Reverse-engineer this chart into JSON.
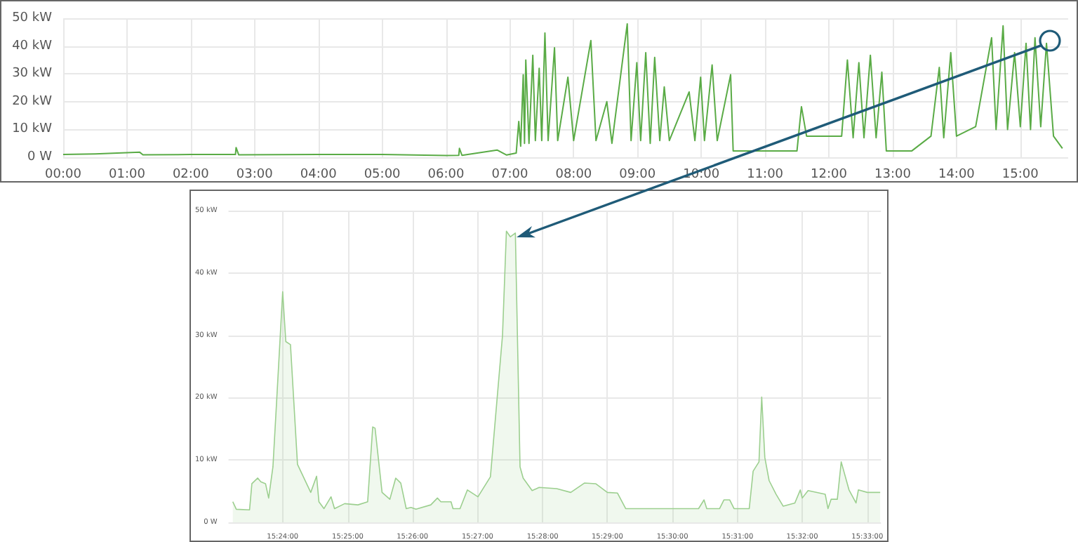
{
  "chart_data": [
    {
      "type": "line",
      "xlim": [
        0,
        15.75
      ],
      "ylim": [
        0,
        50
      ],
      "xticks": [
        {
          "value": 0,
          "label": "00:00"
        },
        {
          "value": 1,
          "label": "01:00"
        },
        {
          "value": 2,
          "label": "02:00"
        },
        {
          "value": 3,
          "label": "03:00"
        },
        {
          "value": 4,
          "label": "04:00"
        },
        {
          "value": 5,
          "label": "05:00"
        },
        {
          "value": 6,
          "label": "06:00"
        },
        {
          "value": 7,
          "label": "07:00"
        },
        {
          "value": 8,
          "label": "08:00"
        },
        {
          "value": 9,
          "label": "09:00"
        },
        {
          "value": 10,
          "label": "10:00"
        },
        {
          "value": 11,
          "label": "11:00"
        },
        {
          "value": 12,
          "label": "12:00"
        },
        {
          "value": 13,
          "label": "13:00"
        },
        {
          "value": 14,
          "label": "14:00"
        },
        {
          "value": 15,
          "label": "15:00"
        }
      ],
      "yticks": [
        {
          "value": 0,
          "label": "0 W"
        },
        {
          "value": 10,
          "label": "10 kW"
        },
        {
          "value": 20,
          "label": "20 kW"
        },
        {
          "value": 30,
          "label": "30 kW"
        },
        {
          "value": 40,
          "label": "40 kW"
        },
        {
          "value": 50,
          "label": "50 kW"
        }
      ],
      "grid": true,
      "marker": "none",
      "series": [
        {
          "color": "#5aab46",
          "x": [
            0,
            0.5,
            1.2,
            1.25,
            2.0,
            2.7,
            2.71,
            2.75,
            4.0,
            5.0,
            6.0,
            6.2,
            6.21,
            6.25,
            6.8,
            6.95,
            7.1,
            7.14,
            7.17,
            7.21,
            7.23,
            7.25,
            7.3,
            7.36,
            7.4,
            7.46,
            7.5,
            7.55,
            7.6,
            7.7,
            7.75,
            7.91,
            8.0,
            8.27,
            8.35,
            8.52,
            8.6,
            8.84,
            8.9,
            8.99,
            9.05,
            9.13,
            9.2,
            9.27,
            9.35,
            9.42,
            9.5,
            9.81,
            9.9,
            9.99,
            10.05,
            10.17,
            10.25,
            10.46,
            10.5,
            11.0,
            11.5,
            11.57,
            11.65,
            12.2,
            12.29,
            12.38,
            12.47,
            12.55,
            12.65,
            12.74,
            12.83,
            12.9,
            13.3,
            13.6,
            13.73,
            13.8,
            13.91,
            14.0,
            14.3,
            14.55,
            14.62,
            14.73,
            14.8,
            14.91,
            15.0,
            15.09,
            15.16,
            15.23,
            15.32,
            15.41,
            15.52,
            15.66
          ],
          "values": [
            1.0,
            1.2,
            1.8,
            0.9,
            1.0,
            1.0,
            3.5,
            0.9,
            1.0,
            1.0,
            0.6,
            0.7,
            3.2,
            0.7,
            2.6,
            0.8,
            1.5,
            12.9,
            4,
            29.7,
            5,
            35,
            5,
            36.7,
            6,
            32,
            6,
            44.7,
            6,
            39.4,
            6,
            28.8,
            6,
            42,
            6,
            20,
            5,
            48,
            6,
            34,
            6,
            37.6,
            5,
            35.9,
            6,
            25.3,
            6,
            23.5,
            6,
            28.8,
            6,
            33.2,
            6,
            29.7,
            2.3,
            2.3,
            2.3,
            18.2,
            7.6,
            7.6,
            35,
            7,
            34,
            7,
            36.7,
            7,
            30.6,
            2.3,
            2.3,
            7.6,
            32.3,
            7,
            37.6,
            7.6,
            11,
            43,
            10,
            47.3,
            10,
            37.6,
            11,
            41,
            10,
            43,
            11,
            41,
            7.6,
            3.2
          ]
        }
      ]
    },
    {
      "type": "area",
      "xlim": [
        15.3861,
        15.5535
      ],
      "ylim": [
        0,
        50
      ],
      "xticks": [
        {
          "value": 15.4,
          "label": "15:24:00"
        },
        {
          "value": 15.4167,
          "label": "15:25:00"
        },
        {
          "value": 15.4333,
          "label": "15:26:00"
        },
        {
          "value": 15.45,
          "label": "15:27:00"
        },
        {
          "value": 15.4667,
          "label": "15:28:00"
        },
        {
          "value": 15.4833,
          "label": "15:29:00"
        },
        {
          "value": 15.5,
          "label": "15:30:00"
        },
        {
          "value": 15.5167,
          "label": "15:31:00"
        },
        {
          "value": 15.5333,
          "label": "15:32:00"
        },
        {
          "value": 15.55,
          "label": "15:33:00"
        }
      ],
      "yticks": [
        {
          "value": 0,
          "label": "0 W"
        },
        {
          "value": 10,
          "label": "10 kW"
        },
        {
          "value": 20,
          "label": "20 kW"
        },
        {
          "value": 30,
          "label": "30 kW"
        },
        {
          "value": 40,
          "label": "40 kW"
        },
        {
          "value": 50,
          "label": "50 kW"
        }
      ],
      "grid": true,
      "marker": "none",
      "series": [
        {
          "color": "#9ccf8f",
          "x": [
            15.3872,
            15.3881,
            15.3915,
            15.3921,
            15.3936,
            15.3944,
            15.3956,
            15.3964,
            15.3975,
            15.3985,
            15.4,
            15.4008,
            15.402,
            15.4038,
            15.4072,
            15.4087,
            15.4093,
            15.4106,
            15.4124,
            15.4133,
            15.4159,
            15.4193,
            15.4218,
            15.4231,
            15.4237,
            15.4255,
            15.4275,
            15.429,
            15.4303,
            15.4317,
            15.4329,
            15.4342,
            15.438,
            15.4397,
            15.4406,
            15.4432,
            15.4437,
            15.4455,
            15.4474,
            15.4501,
            15.4533,
            15.4564,
            15.4574,
            15.4584,
            15.4597,
            15.4609,
            15.4617,
            15.464,
            15.4658,
            15.4703,
            15.4739,
            15.4774,
            15.4803,
            15.4833,
            15.4859,
            15.488,
            15.5067,
            15.5081,
            15.5088,
            15.5121,
            15.5132,
            15.5147,
            15.5158,
            15.5197,
            15.5207,
            15.5222,
            15.5229,
            15.5237,
            15.5248,
            15.5266,
            15.5284,
            15.5314,
            15.5328,
            15.5333,
            15.5348,
            15.5392,
            15.5399,
            15.5407,
            15.5423,
            15.5433,
            15.5453,
            15.5471,
            15.5477,
            15.55,
            15.5533
          ],
          "values": [
            3.3,
            2.1,
            2.0,
            6.2,
            7.1,
            6.5,
            6.2,
            3.9,
            8.9,
            20,
            37,
            29,
            28.5,
            9.3,
            4.8,
            7.4,
            3.3,
            2.2,
            4.1,
            2.2,
            3.0,
            2.8,
            3.3,
            15.3,
            15.1,
            4.8,
            3.7,
            7.1,
            6.3,
            2.2,
            2.4,
            2.1,
            2.8,
            3.9,
            3.3,
            3.3,
            2.2,
            2.2,
            5.2,
            4.1,
            7.3,
            30,
            46.7,
            45.8,
            46.4,
            8.9,
            7.1,
            5.1,
            5.6,
            5.4,
            4.8,
            6.3,
            6.2,
            4.8,
            4.7,
            2.2,
            2.2,
            3.6,
            2.2,
            2.2,
            3.6,
            3.6,
            2.2,
            2.2,
            8.2,
            9.7,
            20.1,
            10.4,
            6.7,
            4.5,
            2.6,
            3.1,
            5.2,
            3.9,
            5.1,
            4.5,
            2.2,
            3.7,
            3.7,
            9.7,
            5.2,
            3.1,
            5.2,
            4.8,
            4.8
          ]
        }
      ]
    }
  ]
}
